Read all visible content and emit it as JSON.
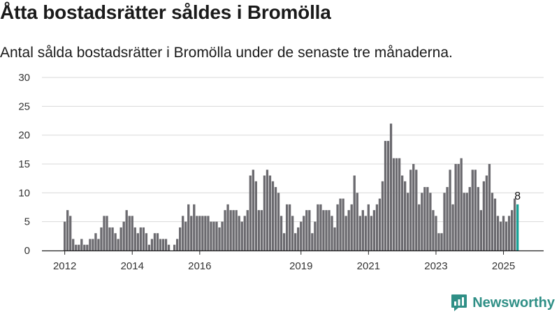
{
  "header": {
    "title": "Åtta bostadsrätter såldes i Bromölla",
    "subtitle": "Antal sålda bostadsrätter i Bromölla under de senaste tre månaderna."
  },
  "brand": {
    "name": "Newsworthy",
    "color": "#2f8f86"
  },
  "colors": {
    "bar": "#6b6a6f",
    "highlight": "#17a398",
    "grid": "#d9d9d9",
    "axis": "#222222"
  },
  "chart_data": {
    "type": "bar",
    "title": "",
    "xlabel": "",
    "ylabel": "",
    "ylim": [
      0,
      30
    ],
    "yticks": [
      "0",
      "5",
      "10",
      "15",
      "20",
      "25",
      "30"
    ],
    "xtick_labels": [
      "2012",
      "2014",
      "2016",
      "2019",
      "2021",
      "2023",
      "2025"
    ],
    "grid": true,
    "start_month": "2012-01",
    "end_month": "2025-07",
    "highlight_last": true,
    "last_label": "8",
    "values": [
      5,
      7,
      6,
      2,
      1,
      1,
      2,
      1,
      1,
      2,
      2,
      3,
      2,
      4,
      6,
      6,
      4,
      4,
      3,
      2,
      4,
      5,
      7,
      6,
      6,
      4,
      3,
      4,
      4,
      3,
      1,
      2,
      3,
      3,
      2,
      2,
      2,
      1,
      0,
      1,
      2,
      4,
      6,
      5,
      8,
      6,
      8,
      6,
      6,
      6,
      6,
      6,
      5,
      5,
      5,
      4,
      5,
      7,
      8,
      7,
      7,
      7,
      6,
      5,
      6,
      7,
      13,
      14,
      12,
      7,
      7,
      13,
      14,
      13,
      12,
      11,
      10,
      6,
      3,
      8,
      8,
      6,
      3,
      4,
      5,
      6,
      7,
      7,
      3,
      5,
      8,
      8,
      7,
      7,
      7,
      6,
      4,
      8,
      9,
      9,
      6,
      7,
      8,
      13,
      10,
      6,
      7,
      6,
      8,
      6,
      7,
      8,
      9,
      12,
      19,
      19,
      22,
      16,
      16,
      16,
      13,
      12,
      10,
      14,
      15,
      14,
      8,
      10,
      11,
      11,
      10,
      7,
      6,
      3,
      3,
      10,
      11,
      14,
      8,
      15,
      15,
      16,
      10,
      10,
      11,
      14,
      14,
      11,
      7,
      12,
      13,
      15,
      10,
      9,
      6,
      5,
      6,
      5,
      6,
      7,
      9,
      8
    ]
  }
}
